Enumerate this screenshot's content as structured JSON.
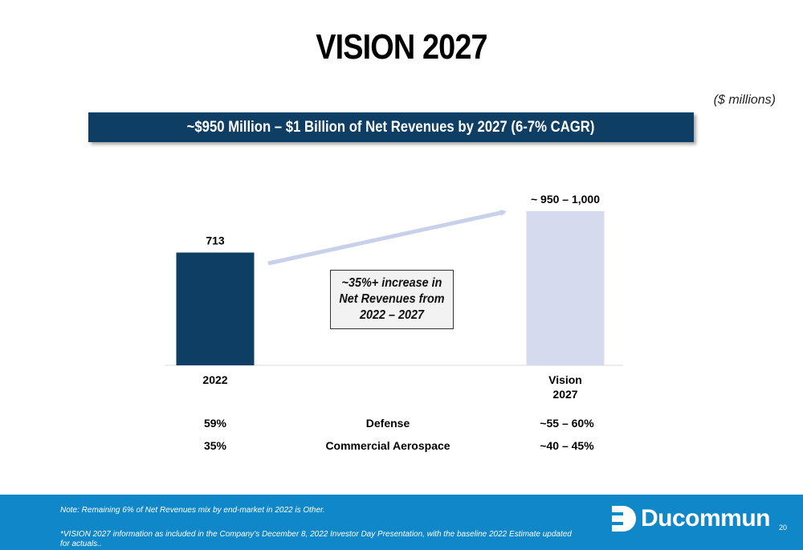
{
  "slide": {
    "title": "VISION 2027",
    "units": "($ millions)",
    "banner": "~$950 Million – $1 Billion of Net Revenues by 2027 (6-7% CAGR)",
    "callout": "~35%+ increase in Net Revenues from 2022 – 2027",
    "page_number": "20"
  },
  "chart_data": {
    "type": "bar",
    "title": "",
    "xlabel": "",
    "ylabel": "",
    "categories": [
      "2022",
      "Vision 2027"
    ],
    "values": [
      713,
      975
    ],
    "data_labels": [
      "713",
      "~ 950 – 1,000"
    ],
    "bar_colors": [
      "#0e3e64",
      "#d6daee"
    ],
    "ylim": [
      0,
      1000
    ],
    "grid": false,
    "legend": "none"
  },
  "end_market_mix": [
    {
      "segment": "Defense",
      "y2022": "59%",
      "y2027": "~55 – 60%"
    },
    {
      "segment": "Commercial Aerospace",
      "y2022": "35%",
      "y2027": "~40 – 45%"
    }
  ],
  "footer": {
    "note1": "Note: Remaining 6% of Net Revenues mix by end-market in 2022 is Other.",
    "note2": "*VISION 2027 information as included in the Company’s December 8, 2022 Investor Day Presentation, with the baseline 2022 Estimate updated for actuals..",
    "logo_text": "Ducommun",
    "background_color": "#1087c9"
  }
}
